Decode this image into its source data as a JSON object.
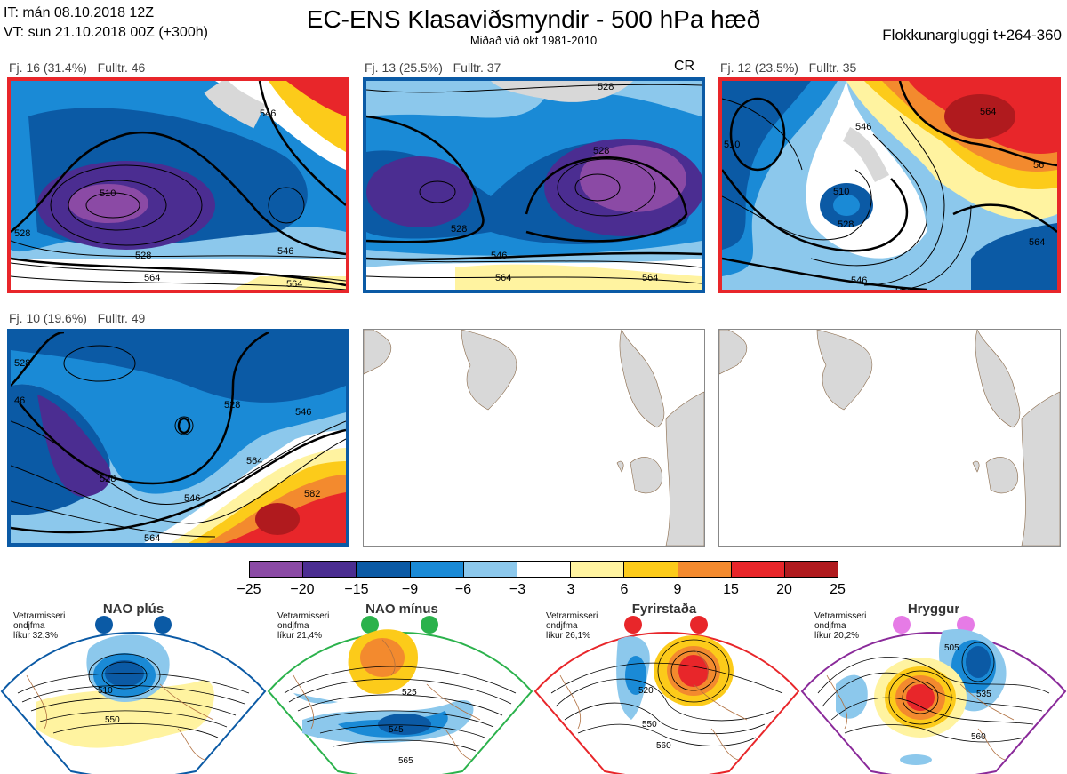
{
  "header": {
    "it_line": "IT: mán 08.10.2018 12Z",
    "vt_line": "VT: sun 21.10.2018 00Z  (+300h)",
    "title": "EC-ENS Klasaviðsmyndir - 500 hPa hæð",
    "subtitle": "Miðað við okt 1981-2010",
    "window": "Flokkunargluggi t+264-360"
  },
  "clusters": [
    {
      "label": "Fj. 16 (31.4%)",
      "members": "Fulltr. 46",
      "border": "#e8262a",
      "tag": "",
      "contours": [
        "546",
        "510",
        "528",
        "528",
        "546",
        "564",
        "564"
      ]
    },
    {
      "label": "Fj. 13 (25.5%)",
      "members": "Fulltr. 37",
      "border": "#0b5aa5",
      "tag": "CR",
      "contours": [
        "528",
        "528",
        "546",
        "564",
        "564",
        "528"
      ]
    },
    {
      "label": "Fj. 12 (23.5%)",
      "members": "Fulltr. 35",
      "border": "#e8262a",
      "tag": "",
      "contours": [
        "564",
        "546",
        "510",
        "528",
        "546",
        "564",
        "564",
        "56",
        "510"
      ]
    },
    {
      "label": "Fj. 10 (19.6%)",
      "members": "Fulltr. 49",
      "border": "#0b5aa5",
      "tag": "",
      "contours": [
        "528",
        "528",
        "546",
        "564",
        "582",
        "546",
        "564",
        "46",
        "528"
      ]
    }
  ],
  "colorbar": {
    "ticks": [
      "−25",
      "−20",
      "−15",
      "−9",
      "−6",
      "−3",
      "3",
      "6",
      "9",
      "15",
      "20",
      "25"
    ],
    "colors": [
      "#8b4aa5",
      "#4b2d91",
      "#0b5aa5",
      "#1a8ad6",
      "#8cc8ec",
      "#ffffff",
      "#fff3a0",
      "#fccb1a",
      "#f38a2e",
      "#e8262a",
      "#b01a1e"
    ]
  },
  "regimes": [
    {
      "title": "NAO plús",
      "note": [
        "Vetrarmisseri",
        "ondjfma",
        "líkur 32,3%"
      ],
      "dot_color": "#0b5aa5",
      "border": "#0b5aa5",
      "contours": [
        "510",
        "550"
      ]
    },
    {
      "title": "NAO mínus",
      "note": [
        "Vetrarmisseri",
        "ondjfma",
        "líkur 21,4%"
      ],
      "dot_color": "#2bb24c",
      "border": "#2bb24c",
      "contours": [
        "525",
        "545",
        "565"
      ]
    },
    {
      "title": "Fyrirstaða",
      "note": [
        "Vetrarmisseri",
        "ondjfma",
        "líkur 26,1%"
      ],
      "dot_color": "#e8262a",
      "border": "#e8262a",
      "contours": [
        "520",
        "550",
        "560"
      ]
    },
    {
      "title": "Hryggur",
      "note": [
        "Vetrarmisseri",
        "ondjfma",
        "líkur 20,2%"
      ],
      "dot_color": "#e67be6",
      "border": "#8a2a9a",
      "contours": [
        "505",
        "535",
        "560"
      ]
    }
  ]
}
